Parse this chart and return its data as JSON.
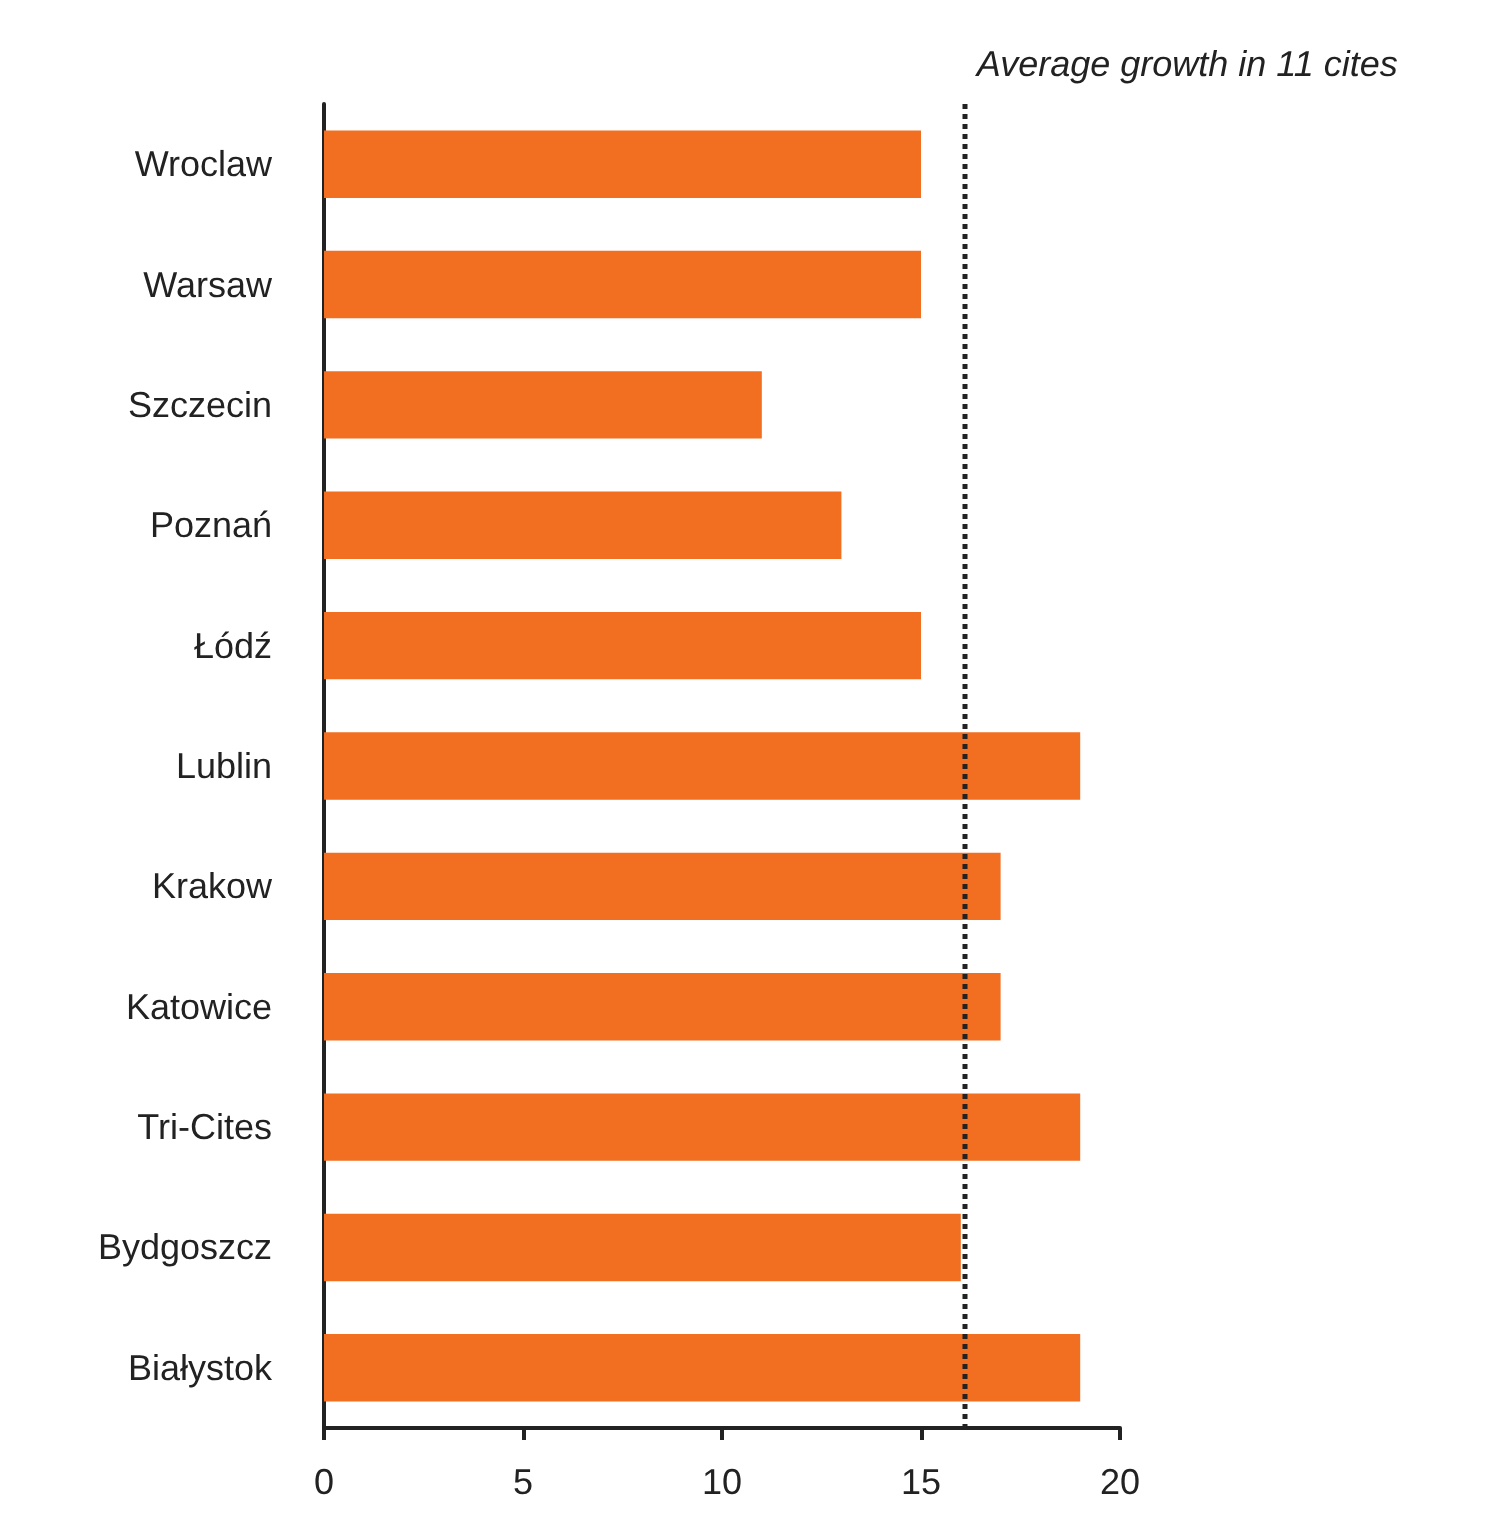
{
  "chart_data": {
    "type": "bar",
    "orientation": "horizontal",
    "categories": [
      "Wroclaw",
      "Warsaw",
      "Szczecin",
      "Poznań",
      "Łódź",
      "Lublin",
      "Krakow",
      "Katowice",
      "Tri-Cites",
      "Bydgoszcz",
      "Białystok"
    ],
    "values": [
      15,
      15,
      11,
      13,
      15,
      19,
      17,
      17,
      19,
      16,
      19
    ],
    "color": "#f26e21",
    "xlim": [
      0,
      20
    ],
    "xticks": [
      0,
      5,
      10,
      15,
      20
    ],
    "grid": false,
    "ref_lines": [
      {
        "axis": "x",
        "value": 16.1,
        "label": "Average growth in 11 cites",
        "line_style": "dotted",
        "color": "#222222"
      }
    ]
  }
}
